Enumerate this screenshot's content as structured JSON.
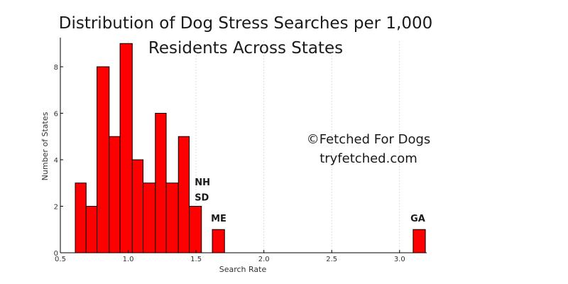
{
  "chart_data": {
    "type": "bar",
    "title_lines": [
      "Distribution of Dog Stress Searches per 1,000",
      "Residents Across States"
    ],
    "xlabel": "Search Rate",
    "ylabel": "Number of States",
    "xlim": [
      0.5,
      3.2
    ],
    "ylim": [
      0,
      9.1
    ],
    "x_ticks": [
      0.5,
      1.0,
      1.5,
      2.0,
      2.5,
      3.0
    ],
    "x_tick_labels": [
      "0.5",
      "1.0",
      "1.5",
      "2.0",
      "2.5",
      "3.0"
    ],
    "y_ticks": [
      0,
      2,
      4,
      6,
      8
    ],
    "y_tick_labels": [
      "0",
      "2",
      "4",
      "6",
      "8"
    ],
    "grid": "x-dotted",
    "bar_color": "#ff0000",
    "bins": [
      {
        "x0": 0.61,
        "x1": 0.69,
        "count": 3
      },
      {
        "x0": 0.69,
        "x1": 0.77,
        "count": 2
      },
      {
        "x0": 0.77,
        "x1": 0.86,
        "count": 8
      },
      {
        "x0": 0.86,
        "x1": 0.94,
        "count": 5
      },
      {
        "x0": 0.94,
        "x1": 1.03,
        "count": 9
      },
      {
        "x0": 1.03,
        "x1": 1.11,
        "count": 4
      },
      {
        "x0": 1.11,
        "x1": 1.2,
        "count": 3
      },
      {
        "x0": 1.2,
        "x1": 1.28,
        "count": 6
      },
      {
        "x0": 1.28,
        "x1": 1.37,
        "count": 3
      },
      {
        "x0": 1.37,
        "x1": 1.45,
        "count": 5
      },
      {
        "x0": 1.45,
        "x1": 1.54,
        "count": 2
      },
      {
        "x0": 1.62,
        "x1": 1.71,
        "count": 1
      },
      {
        "x0": 3.1,
        "x1": 3.19,
        "count": 1
      }
    ],
    "annotations": [
      {
        "text": "NH",
        "x": 1.49,
        "y": 2.9
      },
      {
        "text": "SD",
        "x": 1.49,
        "y": 2.25
      },
      {
        "text": "ME",
        "x": 1.61,
        "y": 1.35
      },
      {
        "text": "GA",
        "x": 3.08,
        "y": 1.35
      }
    ],
    "watermark": [
      "©Fetched For Dogs",
      "tryfetched.com"
    ]
  }
}
